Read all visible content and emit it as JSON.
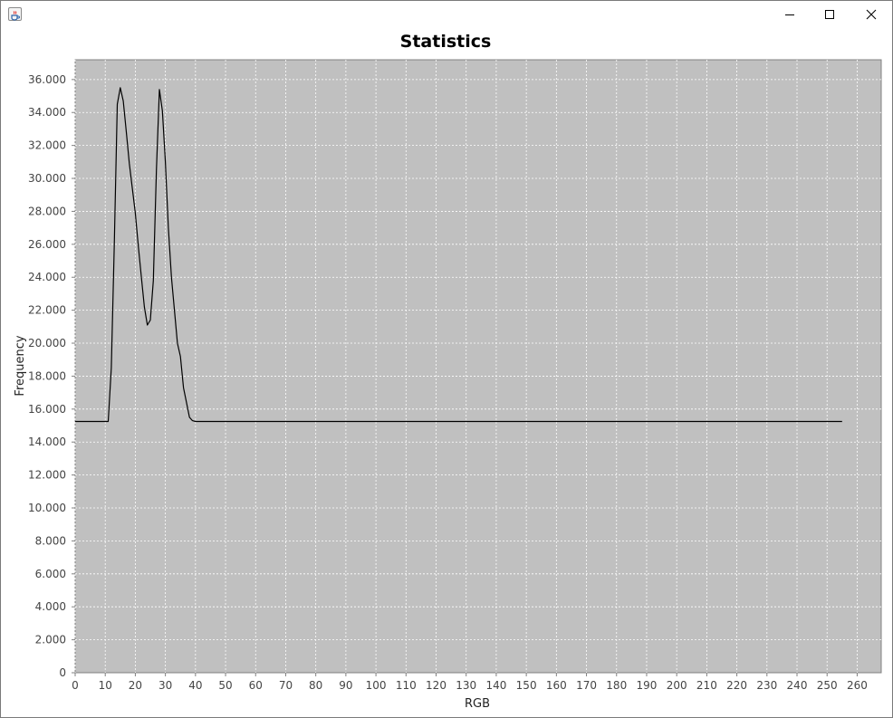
{
  "window": {
    "icons": {
      "app": "java-cup-icon",
      "minimize": "minimize-icon",
      "maximize": "maximize-icon",
      "close": "close-icon"
    }
  },
  "chart_data": {
    "type": "line",
    "title": "Statistics",
    "xlabel": "RGB",
    "ylabel": "Frequency",
    "xlim": [
      0,
      268
    ],
    "ylim": [
      0,
      37200
    ],
    "xticks": [
      0,
      10,
      20,
      30,
      40,
      50,
      60,
      70,
      80,
      90,
      100,
      110,
      120,
      130,
      140,
      150,
      160,
      170,
      180,
      190,
      200,
      210,
      220,
      230,
      240,
      250,
      260
    ],
    "yticks": [
      0,
      2000,
      4000,
      6000,
      8000,
      10000,
      12000,
      14000,
      16000,
      18000,
      20000,
      22000,
      24000,
      26000,
      28000,
      30000,
      32000,
      34000,
      36000
    ],
    "ytick_labels": [
      "0",
      "2.000",
      "4.000",
      "6.000",
      "8.000",
      "10.000",
      "12.000",
      "14.000",
      "16.000",
      "18.000",
      "20.000",
      "22.000",
      "24.000",
      "26.000",
      "28.000",
      "30.000",
      "32.000",
      "34.000",
      "36.000"
    ],
    "grid": true,
    "legend": "none",
    "colors": {
      "plot_bg": "#c0c0c0",
      "grid": "#ffffff",
      "line": "#000000"
    },
    "series": [
      {
        "x": [
          0,
          11,
          12,
          13,
          14,
          15,
          16,
          17,
          18,
          19,
          20,
          21,
          22,
          23,
          24,
          25,
          26,
          27,
          28,
          29,
          30,
          31,
          32,
          33,
          34,
          35,
          36,
          37,
          38,
          39,
          40,
          255
        ],
        "values": [
          15250,
          15250,
          18500,
          26000,
          34500,
          35500,
          34700,
          32800,
          30900,
          29400,
          27900,
          25900,
          24000,
          22200,
          21100,
          21400,
          23800,
          30500,
          35400,
          34100,
          31000,
          27000,
          24000,
          22000,
          20000,
          19200,
          17300,
          16400,
          15500,
          15300,
          15250,
          15250
        ]
      }
    ]
  }
}
